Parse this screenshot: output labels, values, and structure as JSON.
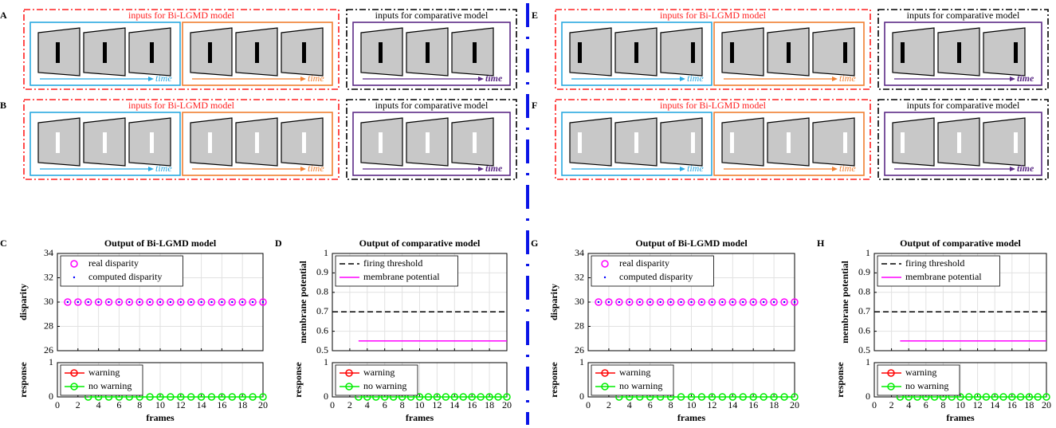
{
  "diagrams": [
    {
      "panel_label": "A",
      "bar_color": "#000000",
      "groups": [
        {
          "title": "inputs for Bi-LGMD model",
          "border_color": "#ff2020",
          "boxes": [
            {
              "color": "#29a8e0",
              "arrow_label": "time"
            },
            {
              "color": "#f07f30",
              "arrow_label": "time"
            }
          ]
        },
        {
          "title": "inputs for comparative model",
          "border_color": "#000000",
          "boxes": [
            {
              "color": "#5b2a86",
              "arrow_label": "time"
            }
          ]
        }
      ]
    },
    {
      "panel_label": "B",
      "bar_color": "#ffffff",
      "groups": [
        {
          "title": "inputs for Bi-LGMD model",
          "border_color": "#ff2020",
          "boxes": [
            {
              "color": "#29a8e0",
              "arrow_label": "time"
            },
            {
              "color": "#f07f30",
              "arrow_label": "time"
            }
          ]
        },
        {
          "title": "inputs for comparative model",
          "border_color": "#000000",
          "boxes": [
            {
              "color": "#5b2a86",
              "arrow_label": "time"
            }
          ]
        }
      ]
    },
    {
      "panel_label": "E",
      "bar_color": "#000000",
      "groups": [
        {
          "title": "inputs for Bi-LGMD model",
          "border_color": "#ff2020",
          "boxes": [
            {
              "color": "#29a8e0",
              "arrow_label": "time"
            },
            {
              "color": "#f07f30",
              "arrow_label": "time"
            }
          ]
        },
        {
          "title": "inputs for comparative model",
          "border_color": "#000000",
          "boxes": [
            {
              "color": "#5b2a86",
              "arrow_label": "time"
            }
          ]
        }
      ]
    },
    {
      "panel_label": "F",
      "bar_color": "#ffffff",
      "groups": [
        {
          "title": "inputs for Bi-LGMD model",
          "border_color": "#ff2020",
          "boxes": [
            {
              "color": "#29a8e0",
              "arrow_label": "time"
            },
            {
              "color": "#f07f30",
              "arrow_label": "time"
            }
          ]
        },
        {
          "title": "inputs for comparative model",
          "border_color": "#000000",
          "boxes": [
            {
              "color": "#5b2a86",
              "arrow_label": "time"
            }
          ]
        }
      ]
    }
  ],
  "chart_data": [
    {
      "type": "scatter",
      "panel_label": "C",
      "title": "Output of Bi-LGMD model",
      "ylabel": "disparity",
      "xlim": [
        0,
        20
      ],
      "xticks": [
        0,
        2,
        4,
        6,
        8,
        10,
        12,
        14,
        16,
        18,
        20
      ],
      "ylim": [
        26,
        34
      ],
      "yticks": [
        26,
        28,
        30,
        32,
        34
      ],
      "grid": true,
      "legend": "upper left",
      "series": [
        {
          "name": "real disparity",
          "color": "#ff00ff",
          "marker": "circle",
          "linestyle": "none",
          "x": [
            1,
            2,
            3,
            4,
            5,
            6,
            7,
            8,
            9,
            10,
            11,
            12,
            13,
            14,
            15,
            16,
            17,
            18,
            19,
            20
          ],
          "values": [
            30,
            30,
            30,
            30,
            30,
            30,
            30,
            30,
            30,
            30,
            30,
            30,
            30,
            30,
            30,
            30,
            30,
            30,
            30,
            30
          ]
        },
        {
          "name": "computed disparity",
          "color": "#0000ff",
          "marker": "dot",
          "linestyle": "none",
          "x": [
            1,
            2,
            3,
            4,
            5,
            6,
            7,
            8,
            9,
            10,
            11,
            12,
            13,
            14,
            15,
            16,
            17,
            18,
            19,
            20
          ],
          "values": [
            30,
            30,
            30,
            30,
            30,
            30,
            30,
            30,
            30,
            30,
            30,
            30,
            30,
            30,
            30,
            30,
            30,
            30,
            30,
            30
          ]
        }
      ]
    },
    {
      "type": "scatter",
      "ylabel": "response",
      "xlabel": "frames",
      "xlim": [
        0,
        20
      ],
      "xticks": [
        0,
        2,
        4,
        6,
        8,
        10,
        12,
        14,
        16,
        18,
        20
      ],
      "ylim": [
        0,
        1
      ],
      "yticks": [
        0,
        1
      ],
      "grid": true,
      "legend": "upper left",
      "series": [
        {
          "name": "warning",
          "color": "#ff0000",
          "marker": "circle",
          "linestyle": "solid",
          "x": [],
          "values": []
        },
        {
          "name": "no warning",
          "color": "#00ee00",
          "marker": "circle",
          "linestyle": "solid",
          "x": [
            3,
            4,
            5,
            6,
            7,
            8,
            9,
            10,
            11,
            12,
            13,
            14,
            15,
            16,
            17,
            18,
            19,
            20
          ],
          "values": [
            0,
            0,
            0,
            0,
            0,
            0,
            0,
            0,
            0,
            0,
            0,
            0,
            0,
            0,
            0,
            0,
            0,
            0
          ]
        }
      ]
    },
    {
      "type": "line",
      "panel_label": "D",
      "title": "Output of comparative model",
      "ylabel": "membrane potential",
      "xlim": [
        0,
        20
      ],
      "xticks": [
        0,
        2,
        4,
        6,
        8,
        10,
        12,
        14,
        16,
        18,
        20
      ],
      "ylim": [
        0.5,
        1
      ],
      "yticks": [
        0.5,
        0.6,
        0.7,
        0.8,
        0.9,
        1
      ],
      "grid": true,
      "legend": "upper left",
      "series": [
        {
          "name": "firing threshold",
          "color": "#000000",
          "marker": "none",
          "linestyle": "dashed",
          "x": [
            0,
            20
          ],
          "values": [
            0.7,
            0.7
          ]
        },
        {
          "name": "membrane potential",
          "color": "#ff00ff",
          "marker": "none",
          "linestyle": "solid",
          "x": [
            3,
            20
          ],
          "values": [
            0.55,
            0.55
          ]
        }
      ]
    },
    {
      "type": "scatter",
      "ylabel": "response",
      "xlabel": "frames",
      "xlim": [
        0,
        20
      ],
      "xticks": [
        0,
        2,
        4,
        6,
        8,
        10,
        12,
        14,
        16,
        18,
        20
      ],
      "ylim": [
        0,
        1
      ],
      "yticks": [
        0,
        1
      ],
      "grid": true,
      "legend": "upper left",
      "series": [
        {
          "name": "warning",
          "color": "#ff0000",
          "marker": "circle",
          "linestyle": "solid",
          "x": [],
          "values": []
        },
        {
          "name": "no warning",
          "color": "#00ee00",
          "marker": "circle",
          "linestyle": "solid",
          "x": [
            3,
            4,
            5,
            6,
            7,
            8,
            9,
            10,
            11,
            12,
            13,
            14,
            15,
            16,
            17,
            18,
            19,
            20
          ],
          "values": [
            0,
            0,
            0,
            0,
            0,
            0,
            0,
            0,
            0,
            0,
            0,
            0,
            0,
            0,
            0,
            0,
            0,
            0
          ]
        }
      ]
    },
    {
      "type": "scatter",
      "panel_label": "G",
      "title": "Output of Bi-LGMD model",
      "ylabel": "disparity",
      "xlim": [
        0,
        20
      ],
      "xticks": [
        0,
        2,
        4,
        6,
        8,
        10,
        12,
        14,
        16,
        18,
        20
      ],
      "ylim": [
        26,
        34
      ],
      "yticks": [
        26,
        28,
        30,
        32,
        34
      ],
      "grid": true,
      "legend": "upper left",
      "series": [
        {
          "name": "real disparity",
          "color": "#ff00ff",
          "marker": "circle",
          "linestyle": "none",
          "x": [
            1,
            2,
            3,
            4,
            5,
            6,
            7,
            8,
            9,
            10,
            11,
            12,
            13,
            14,
            15,
            16,
            17,
            18,
            19,
            20
          ],
          "values": [
            30,
            30,
            30,
            30,
            30,
            30,
            30,
            30,
            30,
            30,
            30,
            30,
            30,
            30,
            30,
            30,
            30,
            30,
            30,
            30
          ]
        },
        {
          "name": "computed disparity",
          "color": "#0000ff",
          "marker": "dot",
          "linestyle": "none",
          "x": [
            1,
            2,
            3,
            4,
            5,
            6,
            7,
            8,
            9,
            10,
            11,
            12,
            13,
            14,
            15,
            16,
            17,
            18,
            19,
            20
          ],
          "values": [
            30,
            30,
            30,
            30,
            30,
            30,
            30,
            30,
            30,
            30,
            30,
            30,
            30,
            30,
            30,
            30,
            30,
            30,
            30,
            30
          ]
        }
      ]
    },
    {
      "type": "scatter",
      "ylabel": "response",
      "xlabel": "frames",
      "xlim": [
        0,
        20
      ],
      "xticks": [
        0,
        2,
        4,
        6,
        8,
        10,
        12,
        14,
        16,
        18,
        20
      ],
      "ylim": [
        0,
        1
      ],
      "yticks": [
        0,
        1
      ],
      "grid": true,
      "legend": "upper left",
      "series": [
        {
          "name": "warning",
          "color": "#ff0000",
          "marker": "circle",
          "linestyle": "solid",
          "x": [],
          "values": []
        },
        {
          "name": "no warning",
          "color": "#00ee00",
          "marker": "circle",
          "linestyle": "solid",
          "x": [
            3,
            4,
            5,
            6,
            7,
            8,
            9,
            10,
            11,
            12,
            13,
            14,
            15,
            16,
            17,
            18,
            19,
            20
          ],
          "values": [
            0,
            0,
            0,
            0,
            0,
            0,
            0,
            0,
            0,
            0,
            0,
            0,
            0,
            0,
            0,
            0,
            0,
            0
          ]
        }
      ]
    },
    {
      "type": "line",
      "panel_label": "H",
      "title": "Output of comparative model",
      "ylabel": "membrane potential",
      "xlim": [
        0,
        20
      ],
      "xticks": [
        0,
        2,
        4,
        6,
        8,
        10,
        12,
        14,
        16,
        18,
        20
      ],
      "ylim": [
        0.5,
        1
      ],
      "yticks": [
        0.5,
        0.6,
        0.7,
        0.8,
        0.9,
        1
      ],
      "grid": true,
      "legend": "upper left",
      "series": [
        {
          "name": "firing threshold",
          "color": "#000000",
          "marker": "none",
          "linestyle": "dashed",
          "x": [
            0,
            20
          ],
          "values": [
            0.7,
            0.7
          ]
        },
        {
          "name": "membrane potential",
          "color": "#ff00ff",
          "marker": "none",
          "linestyle": "solid",
          "x": [
            3,
            20
          ],
          "values": [
            0.55,
            0.55
          ]
        }
      ]
    },
    {
      "type": "scatter",
      "ylabel": "response",
      "xlabel": "frames",
      "xlim": [
        0,
        20
      ],
      "xticks": [
        0,
        2,
        4,
        6,
        8,
        10,
        12,
        14,
        16,
        18,
        20
      ],
      "ylim": [
        0,
        1
      ],
      "yticks": [
        0,
        1
      ],
      "grid": true,
      "legend": "upper left",
      "series": [
        {
          "name": "warning",
          "color": "#ff0000",
          "marker": "circle",
          "linestyle": "solid",
          "x": [],
          "values": []
        },
        {
          "name": "no warning",
          "color": "#00ee00",
          "marker": "circle",
          "linestyle": "solid",
          "x": [
            3,
            4,
            5,
            6,
            7,
            8,
            9,
            10,
            11,
            12,
            13,
            14,
            15,
            16,
            17,
            18,
            19,
            20
          ],
          "values": [
            0,
            0,
            0,
            0,
            0,
            0,
            0,
            0,
            0,
            0,
            0,
            0,
            0,
            0,
            0,
            0,
            0,
            0
          ]
        }
      ]
    }
  ]
}
